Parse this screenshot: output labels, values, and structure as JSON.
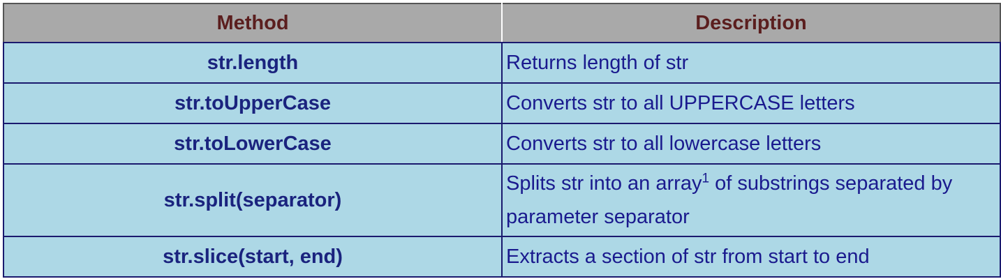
{
  "headers": {
    "method": "Method",
    "description": "Description"
  },
  "rows": [
    {
      "method": "str.length",
      "description": "Returns length of str"
    },
    {
      "method": "str.toUpperCase",
      "description": "Converts str to all UPPERCASE letters"
    },
    {
      "method": "str.toLowerCase",
      "description": "Converts str to all lowercase letters"
    },
    {
      "method": "str.split(separator)",
      "description_before": "Splits str into an array",
      "footnote": "1",
      "description_after": " of substrings separated by parameter separator"
    },
    {
      "method": "str.slice(start, end)",
      "description": "Extracts a section of str from start to end"
    }
  ],
  "colors": {
    "header_bg": "#a9a9a9",
    "header_text": "#5b1e1e",
    "cell_bg": "#add8e6",
    "cell_text": "#1a237e",
    "border": "#1a1a6e"
  }
}
